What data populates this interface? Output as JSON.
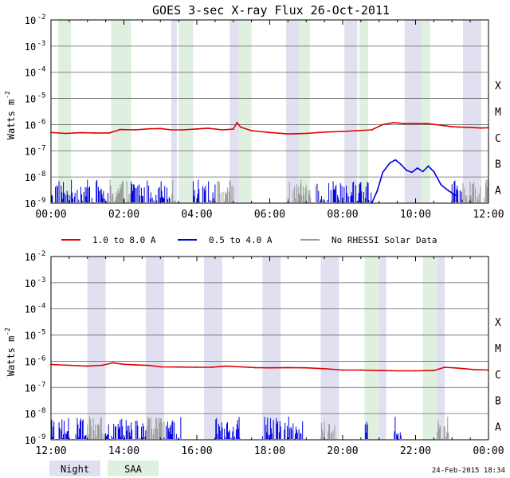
{
  "title": "GOES 3-sec X-ray Flux   26-Oct-2011",
  "ylabel_main": "Watts m",
  "ylabel_exp": "-2",
  "footer_timestamp": "24-Feb-2015 18:34",
  "flare_classes": [
    "X",
    "M",
    "C",
    "B",
    "A"
  ],
  "legend_top": [
    {
      "label": "1.0 to 8.0 A",
      "color": "#dd0000"
    },
    {
      "label": "0.5 to 4.0 A",
      "color": "#0000dd"
    },
    {
      "label": "No RHESSI Solar Data",
      "color": "#999999"
    }
  ],
  "legend_bottom": [
    {
      "label": "Night",
      "color": "#e0e0f0"
    },
    {
      "label": "SAA",
      "color": "#e0f0e0"
    }
  ],
  "chart_data": [
    {
      "type": "line",
      "panel": "top",
      "x_range_hours": [
        0,
        12
      ],
      "xticks": [
        "00:00",
        "02:00",
        "04:00",
        "06:00",
        "08:00",
        "10:00",
        "12:00"
      ],
      "y_scale": "log",
      "ylim": [
        1e-09,
        0.01
      ],
      "yticks": [
        {
          "base": "10",
          "exp": "-9"
        },
        {
          "base": "10",
          "exp": "-8"
        },
        {
          "base": "10",
          "exp": "-7"
        },
        {
          "base": "10",
          "exp": "-6"
        },
        {
          "base": "10",
          "exp": "-5"
        },
        {
          "base": "10",
          "exp": "-4"
        },
        {
          "base": "10",
          "exp": "-3"
        },
        {
          "base": "10",
          "exp": "-2"
        }
      ],
      "night": [
        [
          1.95,
          2.0
        ],
        [
          3.3,
          3.45
        ],
        [
          4.9,
          5.15
        ],
        [
          6.45,
          6.8
        ],
        [
          8.05,
          8.4
        ],
        [
          9.7,
          10.15
        ],
        [
          11.3,
          11.8
        ]
      ],
      "saa": [
        [
          0.2,
          0.55
        ],
        [
          1.65,
          2.2
        ],
        [
          3.5,
          3.9
        ],
        [
          5.15,
          5.5
        ],
        [
          6.8,
          7.1
        ],
        [
          8.45,
          8.7
        ],
        [
          10.15,
          10.4
        ]
      ],
      "series": [
        {
          "name": "1.0 to 8.0 A",
          "color": "#dd0000",
          "points": [
            [
              0.0,
              5e-07
            ],
            [
              0.4,
              4.6e-07
            ],
            [
              0.8,
              4.9e-07
            ],
            [
              1.2,
              4.8e-07
            ],
            [
              1.6,
              4.8e-07
            ],
            [
              1.9,
              6.5e-07
            ],
            [
              2.3,
              6.3e-07
            ],
            [
              2.7,
              6.9e-07
            ],
            [
              3.0,
              7.1e-07
            ],
            [
              3.3,
              6.3e-07
            ],
            [
              3.6,
              6.3e-07
            ],
            [
              4.0,
              6.8e-07
            ],
            [
              4.3,
              7.3e-07
            ],
            [
              4.7,
              6.3e-07
            ],
            [
              5.0,
              6.7e-07
            ],
            [
              5.1,
              1.2e-06
            ],
            [
              5.2,
              8e-07
            ],
            [
              5.5,
              5.9e-07
            ],
            [
              6.0,
              5e-07
            ],
            [
              6.5,
              4.4e-07
            ],
            [
              7.0,
              4.6e-07
            ],
            [
              7.5,
              5.2e-07
            ],
            [
              8.0,
              5.5e-07
            ],
            [
              8.4,
              5.9e-07
            ],
            [
              8.8,
              6.3e-07
            ],
            [
              9.1,
              1e-06
            ],
            [
              9.4,
              1.2e-06
            ],
            [
              9.7,
              1.1e-06
            ],
            [
              10.0,
              1.1e-06
            ],
            [
              10.3,
              1.1e-06
            ],
            [
              10.7,
              9.5e-07
            ],
            [
              11.0,
              8.3e-07
            ],
            [
              11.4,
              7.9e-07
            ],
            [
              11.8,
              7.4e-07
            ],
            [
              12.0,
              7.6e-07
            ]
          ]
        },
        {
          "name": "0.5 to 4.0 A",
          "color": "#0000dd",
          "points": [
            [
              8.8,
              1e-09
            ],
            [
              8.95,
              3e-09
            ],
            [
              9.1,
              1.5e-08
            ],
            [
              9.3,
              3.5e-08
            ],
            [
              9.45,
              4.5e-08
            ],
            [
              9.6,
              3e-08
            ],
            [
              9.75,
              1.8e-08
            ],
            [
              9.9,
              1.5e-08
            ],
            [
              10.05,
              2.2e-08
            ],
            [
              10.2,
              1.6e-08
            ],
            [
              10.35,
              2.6e-08
            ],
            [
              10.5,
              1.6e-08
            ],
            [
              10.7,
              5e-09
            ],
            [
              10.9,
              3e-09
            ],
            [
              11.1,
              2e-09
            ]
          ]
        }
      ]
    },
    {
      "type": "line",
      "panel": "bottom",
      "x_range_hours": [
        12,
        24
      ],
      "xticks": [
        "12:00",
        "14:00",
        "16:00",
        "18:00",
        "20:00",
        "22:00",
        "00:00"
      ],
      "y_scale": "log",
      "ylim": [
        1e-09,
        0.01
      ],
      "yticks": [
        {
          "base": "10",
          "exp": "-9"
        },
        {
          "base": "10",
          "exp": "-8"
        },
        {
          "base": "10",
          "exp": "-7"
        },
        {
          "base": "10",
          "exp": "-6"
        },
        {
          "base": "10",
          "exp": "-5"
        },
        {
          "base": "10",
          "exp": "-4"
        },
        {
          "base": "10",
          "exp": "-3"
        },
        {
          "base": "10",
          "exp": "-2"
        }
      ],
      "night": [
        [
          13.0,
          13.5
        ],
        [
          14.6,
          15.1
        ],
        [
          16.2,
          16.7
        ],
        [
          17.8,
          18.3
        ],
        [
          19.4,
          19.9
        ],
        [
          21.0,
          21.2
        ],
        [
          22.6,
          22.8
        ]
      ],
      "saa": [
        [
          20.6,
          21.0
        ],
        [
          22.2,
          22.6
        ]
      ],
      "series": [
        {
          "name": "1.0 to 8.0 A",
          "color": "#dd0000",
          "points": [
            [
              12.0,
              7.5e-07
            ],
            [
              12.5,
              7e-07
            ],
            [
              13.0,
              6.5e-07
            ],
            [
              13.4,
              7e-07
            ],
            [
              13.7,
              8.7e-07
            ],
            [
              14.0,
              7.6e-07
            ],
            [
              14.3,
              7.3e-07
            ],
            [
              14.7,
              6.9e-07
            ],
            [
              15.0,
              6.1e-07
            ],
            [
              15.5,
              6e-07
            ],
            [
              16.0,
              5.9e-07
            ],
            [
              16.4,
              5.9e-07
            ],
            [
              16.8,
              6.5e-07
            ],
            [
              17.2,
              6.1e-07
            ],
            [
              17.6,
              5.7e-07
            ],
            [
              18.0,
              5.6e-07
            ],
            [
              18.5,
              5.7e-07
            ],
            [
              19.0,
              5.6e-07
            ],
            [
              19.5,
              5.2e-07
            ],
            [
              20.0,
              4.6e-07
            ],
            [
              20.5,
              4.6e-07
            ],
            [
              21.0,
              4.4e-07
            ],
            [
              21.5,
              4.3e-07
            ],
            [
              22.0,
              4.3e-07
            ],
            [
              22.5,
              4.4e-07
            ],
            [
              22.8,
              5.9e-07
            ],
            [
              23.2,
              5.4e-07
            ],
            [
              23.6,
              4.8e-07
            ],
            [
              24.0,
              4.6e-07
            ]
          ]
        }
      ]
    }
  ]
}
